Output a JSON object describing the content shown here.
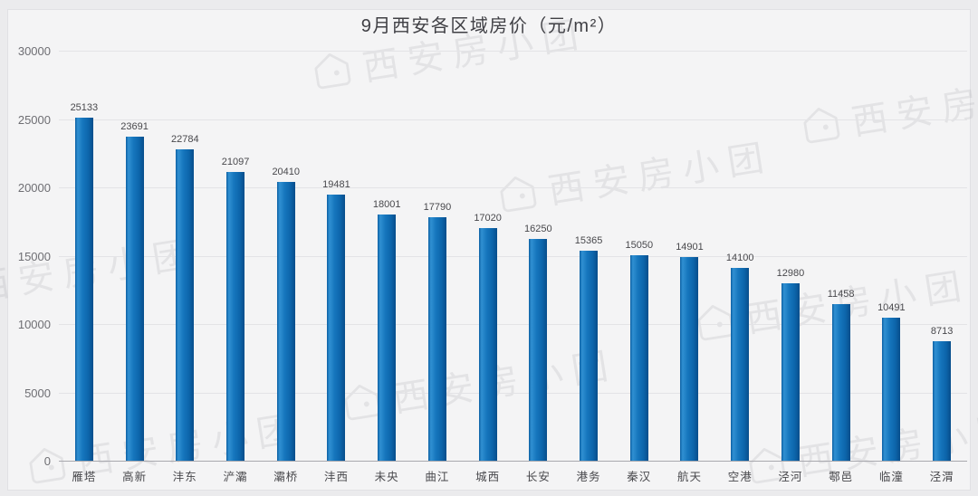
{
  "watermark": {
    "text": "西安房小团",
    "icon": "house-logo-icon"
  },
  "colors": {
    "bar_main": "#1676bd",
    "bar_highlight": "#3090d2",
    "bar_shadow": "#084e8b",
    "background": "#f4f4f5",
    "gridline": "#e3e3e6",
    "zero_axis": "#a8a8ae",
    "text": "#48484c"
  },
  "chart_data": {
    "type": "bar",
    "title": "9月西安各区域房价（元/m²）",
    "categories": [
      "雁塔",
      "高新",
      "沣东",
      "浐灞",
      "灞桥",
      "沣西",
      "未央",
      "曲江",
      "城西",
      "长安",
      "港务",
      "秦汉",
      "航天",
      "空港",
      "泾河",
      "鄠邑",
      "临潼",
      "泾渭"
    ],
    "values": [
      25133,
      23691,
      22784,
      21097,
      20410,
      19481,
      18001,
      17790,
      17020,
      16250,
      15365,
      15050,
      14901,
      14100,
      12980,
      11458,
      10491,
      8713
    ],
    "xlabel": "",
    "ylabel": "",
    "ylim": [
      0,
      30000
    ],
    "yticks": [
      0,
      5000,
      10000,
      15000,
      20000,
      25000,
      30000
    ],
    "grid": true,
    "data_labels": true,
    "legend": "none"
  }
}
